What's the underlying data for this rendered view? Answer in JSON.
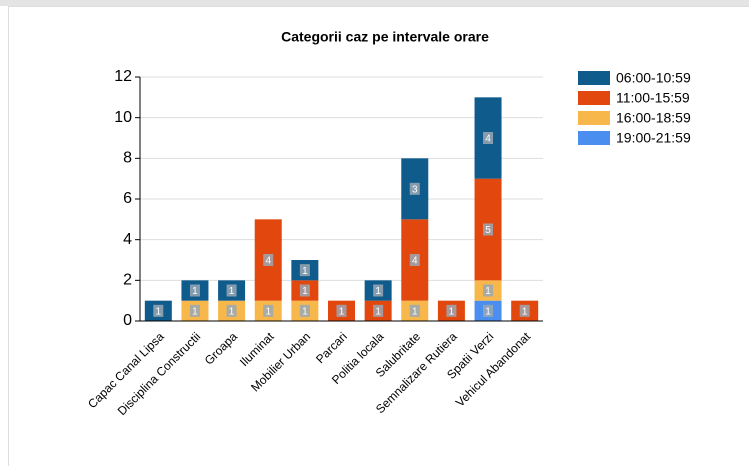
{
  "chart_data": {
    "type": "stacked_bar",
    "title": "Categorii caz pe intervale orare",
    "categories": [
      "Capac Canal Lipsa",
      "Disciplina Constructii",
      "Groapa",
      "Iluminat",
      "Mobilier Urban",
      "Parcari",
      "Politia locala",
      "Salubritate",
      "Semnalizare Rutiera",
      "Spatii Verzi",
      "Vehicul Abandonat"
    ],
    "series": [
      {
        "name": "19:00-21:59",
        "color": "#4a8ff0",
        "values": [
          null,
          null,
          null,
          null,
          null,
          null,
          null,
          null,
          null,
          1,
          null
        ]
      },
      {
        "name": "16:00-18:59",
        "color": "#f8b74a",
        "values": [
          null,
          1,
          1,
          1,
          1,
          null,
          null,
          1,
          null,
          1,
          null
        ]
      },
      {
        "name": "11:00-15:59",
        "color": "#e2470e",
        "values": [
          null,
          null,
          null,
          4,
          1,
          1,
          1,
          4,
          1,
          5,
          1
        ]
      },
      {
        "name": "06:00-10:59",
        "color": "#0f5b8c",
        "values": [
          1,
          1,
          1,
          null,
          1,
          null,
          1,
          3,
          null,
          4,
          null
        ]
      }
    ],
    "legend_order": "reverse",
    "ylim": [
      0,
      12
    ],
    "yticks": [
      0,
      2,
      4,
      6,
      8,
      10,
      12
    ],
    "grid": true
  }
}
